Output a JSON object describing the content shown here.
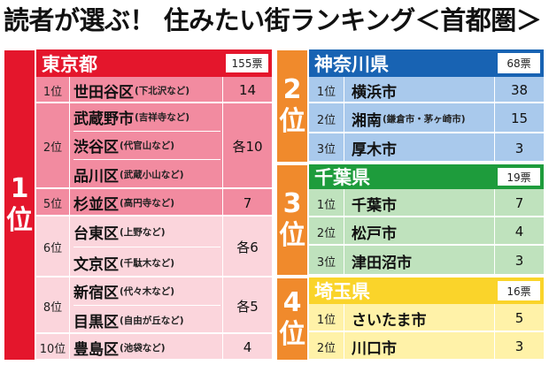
{
  "title": "読者が選ぶ！ 住みたい街ランキング＜首都圏＞",
  "colors": {
    "red": "#e4162c",
    "pink_dark": "#f28ba0",
    "pink_light": "#fbd5dc",
    "blue": "#1863b3",
    "blue_light": "#a9c9ec",
    "green": "#1e9c3c",
    "green_light": "#bfe2bd",
    "orange": "#f08a2c",
    "yellow": "#fad42a",
    "yellow_light": "#fff2a8"
  },
  "left": {
    "rank_label": [
      "1",
      "位"
    ],
    "pref": "東京都",
    "votes": "155票",
    "rows": [
      {
        "rank": "1位",
        "name": "世田谷区",
        "sub": "(下北沢など)",
        "value": "14"
      },
      {
        "rank": "2位",
        "name": "武蔵野市",
        "sub": "(吉祥寺など)",
        "value": "各10"
      },
      {
        "rank": "",
        "name": "渋谷区",
        "sub": "(代官山など)",
        "value": ""
      },
      {
        "rank": "",
        "name": "品川区",
        "sub": "(武蔵小山など)",
        "value": ""
      },
      {
        "rank": "5位",
        "name": "杉並区",
        "sub": "(高円寺など)",
        "value": "7"
      },
      {
        "rank": "6位",
        "name": "台東区",
        "sub": "(上野など)",
        "value": "各6"
      },
      {
        "rank": "",
        "name": "文京区",
        "sub": "(千駄木など)",
        "value": ""
      },
      {
        "rank": "8位",
        "name": "新宿区",
        "sub": "(代々木など)",
        "value": "各5"
      },
      {
        "rank": "",
        "name": "目黒区",
        "sub": "(自由が丘など)",
        "value": ""
      },
      {
        "rank": "10位",
        "name": "豊島区",
        "sub": "(池袋など)",
        "value": "4"
      }
    ]
  },
  "right": [
    {
      "rank_label": [
        "2",
        "位"
      ],
      "pref": "神奈川県",
      "votes": "68票",
      "rows": [
        {
          "rank": "1位",
          "name": "横浜市",
          "sub": "",
          "value": "38"
        },
        {
          "rank": "2位",
          "name": "湘南",
          "sub": "(鎌倉市・茅ヶ崎市)",
          "value": "15"
        },
        {
          "rank": "3位",
          "name": "厚木市",
          "sub": "",
          "value": "3"
        }
      ]
    },
    {
      "rank_label": [
        "3",
        "位"
      ],
      "pref": "千葉県",
      "votes": "19票",
      "rows": [
        {
          "rank": "1位",
          "name": "千葉市",
          "sub": "",
          "value": "7"
        },
        {
          "rank": "2位",
          "name": "松戸市",
          "sub": "",
          "value": "4"
        },
        {
          "rank": "3位",
          "name": "津田沼市",
          "sub": "",
          "value": "3"
        }
      ]
    },
    {
      "rank_label": [
        "4",
        "位"
      ],
      "pref": "埼玉県",
      "votes": "16票",
      "rows": [
        {
          "rank": "1位",
          "name": "さいたま市",
          "sub": "",
          "value": "5"
        },
        {
          "rank": "2位",
          "name": "川口市",
          "sub": "",
          "value": "3"
        }
      ]
    }
  ]
}
